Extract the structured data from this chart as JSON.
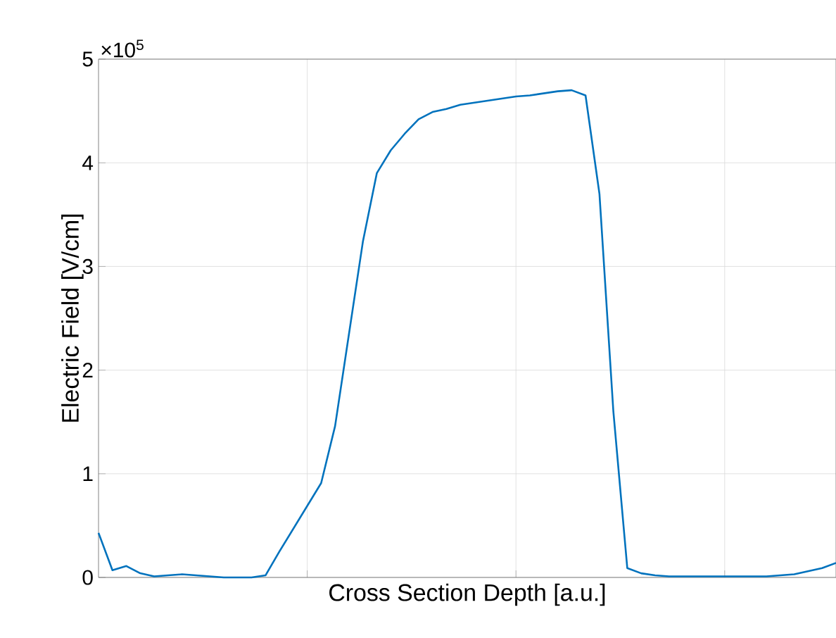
{
  "chart_data": {
    "type": "line",
    "xlabel": "Cross Section Depth [a.u.]",
    "ylabel": "Electric Field [V/cm]",
    "annotations": [
      "×10$^{5}$"
    ],
    "grid": true,
    "ylim": [
      0,
      5
    ],
    "yticks": [
      0,
      1,
      2,
      3,
      4,
      5
    ],
    "categories": [
      null,
      null,
      null,
      null,
      null,
      null,
      null,
      null,
      null,
      null,
      null,
      null,
      null,
      null,
      null,
      null,
      null,
      null,
      null,
      null,
      null,
      null,
      null,
      null,
      null,
      null,
      null,
      null,
      null,
      null,
      null,
      null,
      null,
      null,
      null,
      null,
      null,
      null,
      null,
      null,
      null,
      null,
      null,
      null,
      null,
      null,
      null,
      null,
      null,
      null,
      null,
      null,
      null,
      null
    ],
    "series": [
      {
        "color": "#0072bd",
        "values": [
          0.43,
          0.07,
          0.11,
          0.04,
          0.01,
          0.02,
          0.03,
          0.02,
          0.01,
          0,
          0,
          0,
          0.02,
          0.25,
          0.47,
          0.69,
          0.91,
          1.46,
          2.35,
          3.24,
          3.9,
          4.12,
          4.28,
          4.42,
          4.49,
          4.52,
          4.56,
          4.58,
          4.6,
          4.62,
          4.64,
          4.65,
          4.67,
          4.69,
          4.7,
          4.65,
          3.7,
          1.6,
          0.09,
          0.04,
          0.02,
          0.01,
          0.01,
          0.01,
          0.01,
          0.01,
          0.01,
          0.01,
          0.01,
          0.02,
          0.03,
          0.06,
          0.09,
          0.14
        ]
      }
    ]
  }
}
